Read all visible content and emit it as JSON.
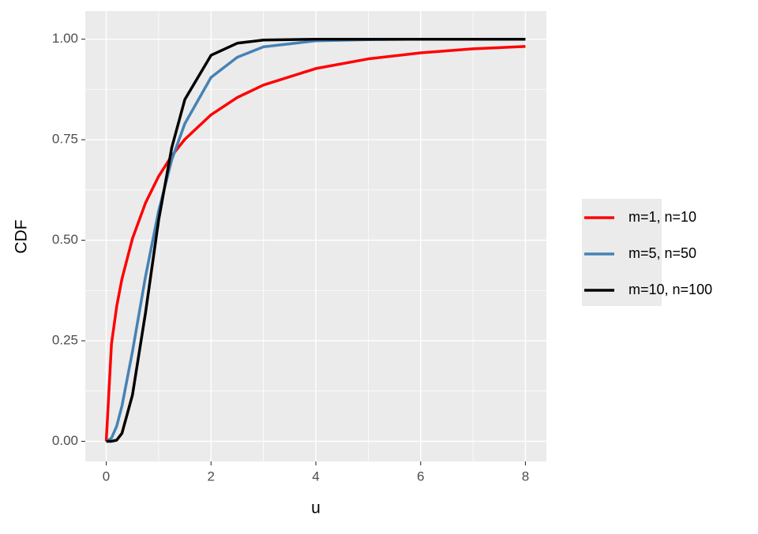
{
  "chart_data": {
    "type": "line",
    "x_label": "u",
    "y_label": "CDF",
    "x": [
      0,
      0.1,
      0.2,
      0.3,
      0.5,
      0.75,
      1,
      1.25,
      1.5,
      2,
      2.5,
      3,
      4,
      5,
      6,
      7,
      8
    ],
    "series": [
      {
        "name": "m=1, n=10",
        "color": "#ff0000",
        "values": [
          0,
          0.242,
          0.336,
          0.404,
          0.504,
          0.593,
          0.659,
          0.71,
          0.751,
          0.812,
          0.855,
          0.886,
          0.927,
          0.951,
          0.966,
          0.976,
          0.982
        ]
      },
      {
        "name": "m=5, n=50",
        "color": "#4682b4",
        "values": [
          0,
          0.008,
          0.038,
          0.088,
          0.223,
          0.41,
          0.573,
          0.7,
          0.79,
          0.905,
          0.955,
          0.981,
          0.996,
          0.999,
          1,
          1,
          1
        ]
      },
      {
        "name": "m=10, n=100",
        "color": "#000000",
        "values": [
          0,
          0.0001,
          0.003,
          0.02,
          0.115,
          0.32,
          0.55,
          0.73,
          0.85,
          0.96,
          0.99,
          0.998,
          1,
          1,
          1,
          1,
          1
        ]
      }
    ],
    "xlim": [
      -0.4,
      8.4
    ],
    "ylim": [
      -0.05,
      1.07
    ],
    "xticks": [
      0,
      2,
      4,
      6,
      8
    ],
    "yticks": [
      {
        "value": 0,
        "label": "0.00"
      },
      {
        "value": 0.25,
        "label": "0.25"
      },
      {
        "value": 0.5,
        "label": "0.50"
      },
      {
        "value": 0.75,
        "label": "0.75"
      },
      {
        "value": 1,
        "label": "1.00"
      }
    ],
    "grid": true,
    "legend_position": "right"
  }
}
